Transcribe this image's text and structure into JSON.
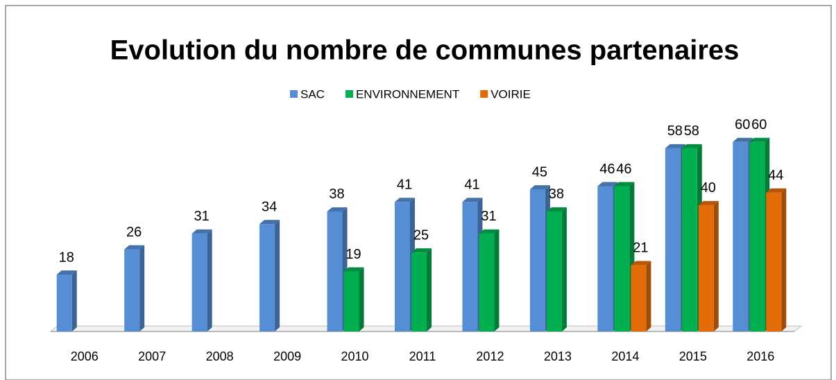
{
  "chart_data": {
    "type": "bar3d",
    "title": "Evolution du nombre de communes partenaires",
    "categories": [
      "2006",
      "2007",
      "2008",
      "2009",
      "2010",
      "2011",
      "2012",
      "2013",
      "2014",
      "2015",
      "2016"
    ],
    "series": [
      {
        "name": "SAC",
        "color": "#558ed5",
        "values": [
          18,
          26,
          31,
          34,
          38,
          41,
          41,
          45,
          46,
          58,
          60
        ]
      },
      {
        "name": "ENVIRONNEMENT",
        "color": "#00b050",
        "values": [
          null,
          null,
          null,
          null,
          19,
          25,
          31,
          38,
          46,
          58,
          60
        ]
      },
      {
        "name": "VOIRIE",
        "color": "#e36c09",
        "values": [
          null,
          null,
          null,
          null,
          null,
          null,
          null,
          null,
          21,
          40,
          44
        ]
      }
    ],
    "ylim": [
      0,
      65
    ],
    "legend": "top"
  }
}
